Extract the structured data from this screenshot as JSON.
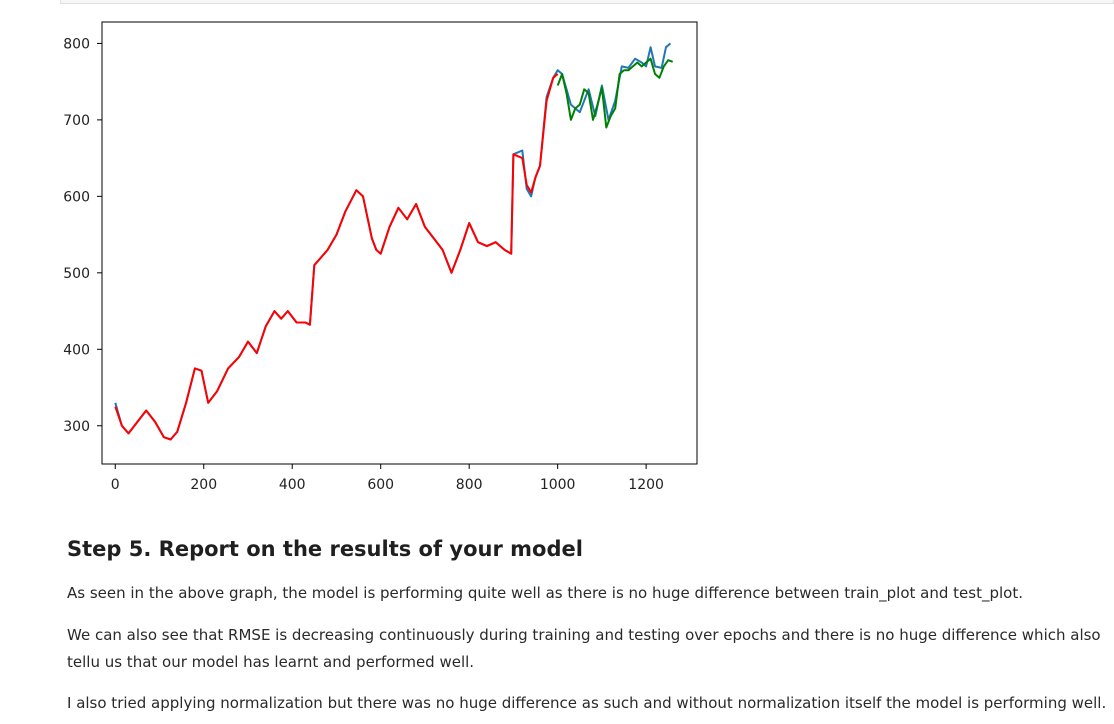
{
  "chart_data": {
    "type": "line",
    "title": "",
    "xlabel": "",
    "ylabel": "",
    "xlim": [
      -30,
      1315
    ],
    "ylim": [
      250,
      828
    ],
    "x_ticks": [
      0,
      200,
      400,
      600,
      800,
      1000,
      1200
    ],
    "y_ticks": [
      300,
      400,
      500,
      600,
      700,
      800
    ],
    "grid": false,
    "series": [
      {
        "color": "#1f77b4",
        "points": [
          [
            0,
            330
          ],
          [
            15,
            300
          ],
          [
            30,
            290
          ],
          [
            50,
            305
          ],
          [
            70,
            320
          ],
          [
            90,
            305
          ],
          [
            110,
            285
          ],
          [
            125,
            282
          ],
          [
            140,
            292
          ],
          [
            160,
            330
          ],
          [
            180,
            375
          ],
          [
            195,
            372
          ],
          [
            210,
            330
          ],
          [
            230,
            345
          ],
          [
            255,
            375
          ],
          [
            280,
            390
          ],
          [
            300,
            410
          ],
          [
            320,
            395
          ],
          [
            340,
            430
          ],
          [
            360,
            450
          ],
          [
            375,
            440
          ],
          [
            390,
            450
          ],
          [
            410,
            435
          ],
          [
            430,
            435
          ],
          [
            440,
            432
          ],
          [
            450,
            510
          ],
          [
            465,
            520
          ],
          [
            480,
            530
          ],
          [
            500,
            550
          ],
          [
            520,
            580
          ],
          [
            545,
            608
          ],
          [
            560,
            600
          ],
          [
            580,
            545
          ],
          [
            590,
            530
          ],
          [
            600,
            525
          ],
          [
            620,
            560
          ],
          [
            640,
            585
          ],
          [
            660,
            570
          ],
          [
            680,
            590
          ],
          [
            700,
            560
          ],
          [
            720,
            545
          ],
          [
            740,
            530
          ],
          [
            760,
            500
          ],
          [
            780,
            530
          ],
          [
            800,
            565
          ],
          [
            820,
            540
          ],
          [
            840,
            535
          ],
          [
            860,
            540
          ],
          [
            880,
            530
          ],
          [
            895,
            525
          ],
          [
            900,
            655
          ],
          [
            920,
            660
          ],
          [
            930,
            610
          ],
          [
            940,
            600
          ],
          [
            950,
            625
          ],
          [
            960,
            640
          ],
          [
            975,
            730
          ],
          [
            990,
            755
          ],
          [
            1000,
            765
          ],
          [
            1010,
            760
          ],
          [
            1020,
            740
          ],
          [
            1030,
            720
          ],
          [
            1050,
            710
          ],
          [
            1070,
            740
          ],
          [
            1085,
            705
          ],
          [
            1100,
            745
          ],
          [
            1115,
            700
          ],
          [
            1130,
            725
          ],
          [
            1145,
            770
          ],
          [
            1160,
            768
          ],
          [
            1175,
            780
          ],
          [
            1190,
            775
          ],
          [
            1200,
            770
          ],
          [
            1210,
            795
          ],
          [
            1220,
            770
          ],
          [
            1235,
            768
          ],
          [
            1245,
            795
          ],
          [
            1255,
            800
          ]
        ]
      },
      {
        "color": "#ff0000",
        "points": [
          [
            0,
            325
          ],
          [
            15,
            300
          ],
          [
            30,
            290
          ],
          [
            50,
            305
          ],
          [
            70,
            320
          ],
          [
            90,
            305
          ],
          [
            110,
            285
          ],
          [
            125,
            282
          ],
          [
            140,
            292
          ],
          [
            160,
            330
          ],
          [
            180,
            375
          ],
          [
            195,
            372
          ],
          [
            210,
            330
          ],
          [
            230,
            345
          ],
          [
            255,
            375
          ],
          [
            280,
            390
          ],
          [
            300,
            410
          ],
          [
            320,
            395
          ],
          [
            340,
            430
          ],
          [
            360,
            450
          ],
          [
            375,
            440
          ],
          [
            390,
            450
          ],
          [
            410,
            435
          ],
          [
            430,
            435
          ],
          [
            440,
            432
          ],
          [
            450,
            510
          ],
          [
            465,
            520
          ],
          [
            480,
            530
          ],
          [
            500,
            550
          ],
          [
            520,
            580
          ],
          [
            545,
            608
          ],
          [
            560,
            600
          ],
          [
            580,
            545
          ],
          [
            590,
            530
          ],
          [
            600,
            525
          ],
          [
            620,
            560
          ],
          [
            640,
            585
          ],
          [
            660,
            570
          ],
          [
            680,
            590
          ],
          [
            700,
            560
          ],
          [
            720,
            545
          ],
          [
            740,
            530
          ],
          [
            760,
            500
          ],
          [
            780,
            530
          ],
          [
            800,
            565
          ],
          [
            820,
            540
          ],
          [
            840,
            535
          ],
          [
            860,
            540
          ],
          [
            880,
            530
          ],
          [
            895,
            525
          ],
          [
            900,
            655
          ],
          [
            920,
            650
          ],
          [
            930,
            615
          ],
          [
            940,
            605
          ],
          [
            950,
            625
          ],
          [
            960,
            640
          ],
          [
            975,
            725
          ],
          [
            990,
            755
          ],
          [
            1000,
            760
          ]
        ]
      },
      {
        "color": "#008000",
        "points": [
          [
            1000,
            745
          ],
          [
            1010,
            760
          ],
          [
            1020,
            735
          ],
          [
            1030,
            700
          ],
          [
            1040,
            715
          ],
          [
            1050,
            720
          ],
          [
            1060,
            740
          ],
          [
            1070,
            735
          ],
          [
            1080,
            700
          ],
          [
            1090,
            720
          ],
          [
            1100,
            742
          ],
          [
            1110,
            690
          ],
          [
            1120,
            705
          ],
          [
            1130,
            715
          ],
          [
            1140,
            760
          ],
          [
            1150,
            765
          ],
          [
            1160,
            765
          ],
          [
            1170,
            770
          ],
          [
            1180,
            775
          ],
          [
            1190,
            770
          ],
          [
            1200,
            775
          ],
          [
            1210,
            780
          ],
          [
            1220,
            760
          ],
          [
            1230,
            755
          ],
          [
            1240,
            770
          ],
          [
            1250,
            778
          ],
          [
            1260,
            776
          ]
        ]
      }
    ]
  },
  "markdown": {
    "heading": "Step 5. Report on the results of your model",
    "paragraphs": [
      "As seen in the above graph, the model is performing quite well as there is no huge difference between train_plot and test_plot.",
      "We can also see that RMSE is decreasing continuously during training and testing over epochs and there is no huge difference which also tellu us that our model has learnt and performed well.",
      "I also tried applying normalization but there was no huge difference as such and without normalization itself the model is performing well."
    ]
  }
}
